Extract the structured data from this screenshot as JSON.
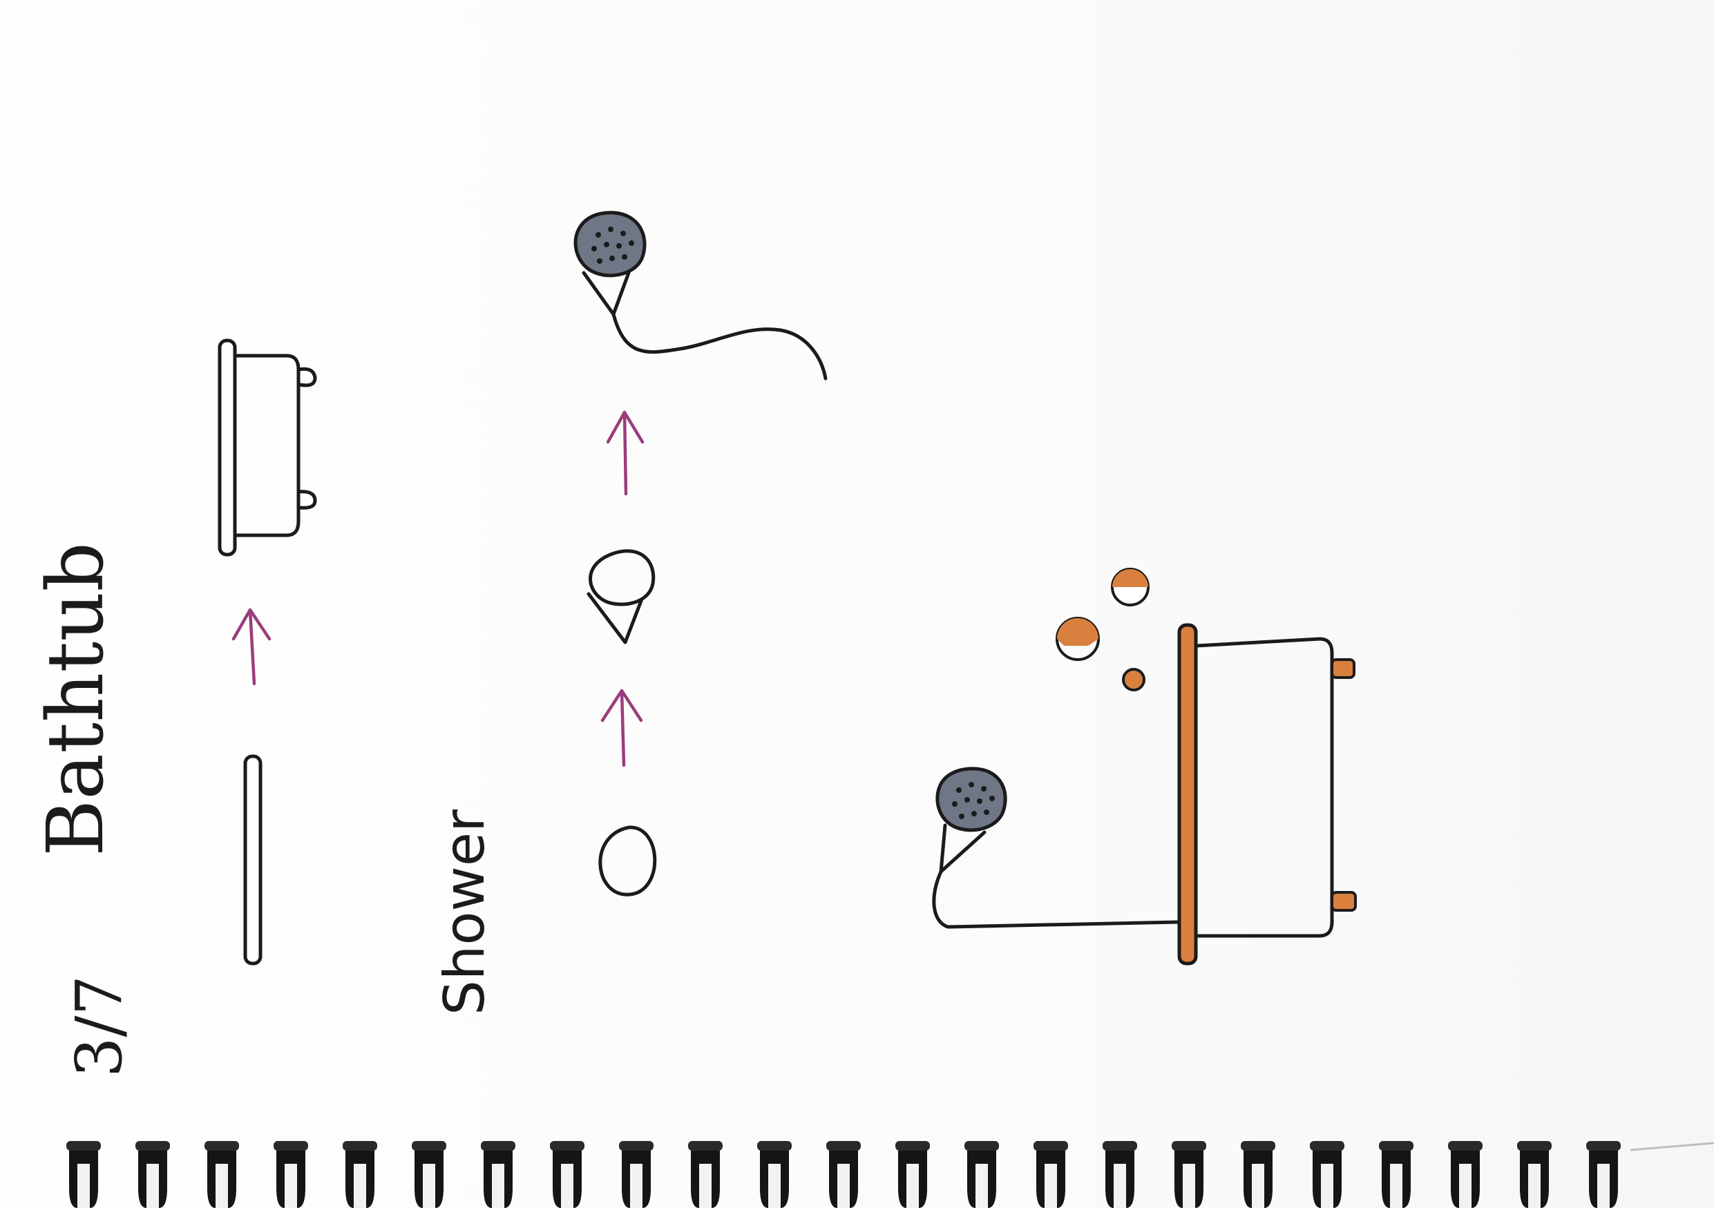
{
  "page": {
    "label": "3/7",
    "title": "Bathtub",
    "subtitle": "Shower"
  },
  "palette": {
    "ink": "#1b1b1b",
    "arrow": "#9a3d7c",
    "accent": "#d9803e",
    "shower_head_fill": "#6f7685",
    "spiral_binding": "#151515"
  }
}
